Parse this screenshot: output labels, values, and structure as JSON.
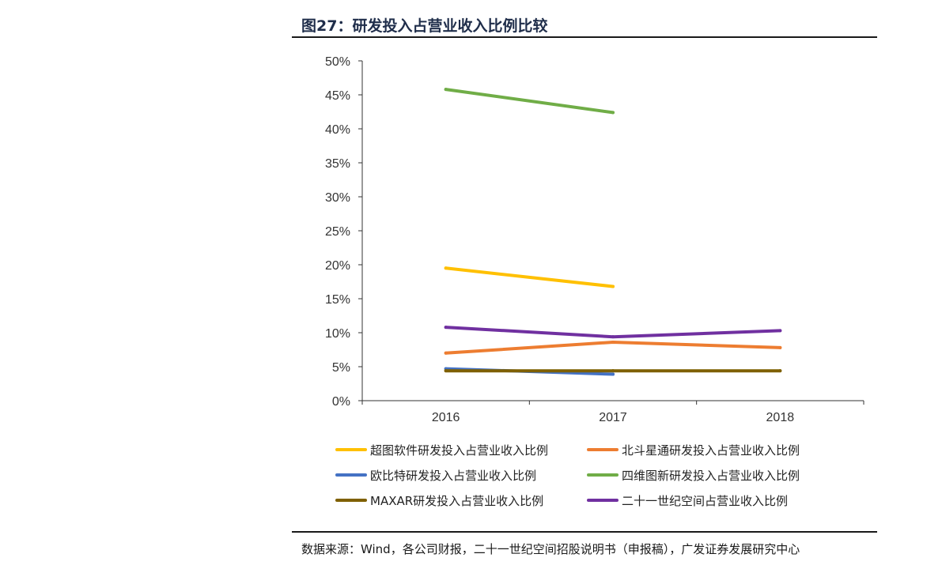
{
  "figure": {
    "title": "图27：研发投入占营业收入比例比较",
    "source": "数据来源：Wind，各公司财报，二十一世纪空间招股说明书（申报稿），广发证券发展研究中心"
  },
  "chart_data": {
    "type": "line",
    "title": "图27：研发投入占营业收入比例比较",
    "xlabel": "",
    "ylabel": "",
    "categories": [
      "2016",
      "2017",
      "2018"
    ],
    "y_ticks": [
      "0%",
      "5%",
      "10%",
      "15%",
      "20%",
      "25%",
      "30%",
      "35%",
      "40%",
      "45%",
      "50%"
    ],
    "ylim": [
      0,
      50
    ],
    "grid": false,
    "legend_position": "bottom",
    "series": [
      {
        "name": "超图软件研发投入占营业收入比例",
        "color": "#FFC000",
        "values": [
          19.5,
          16.8,
          null
        ]
      },
      {
        "name": "北斗星通研发投入占营业收入比例",
        "color": "#ED7D31",
        "values": [
          7.0,
          8.6,
          7.8
        ]
      },
      {
        "name": "欧比特研发投入占营业收入比例",
        "color": "#4472C4",
        "values": [
          4.7,
          3.9,
          null
        ]
      },
      {
        "name": "四维图新研发投入占营业收入比例",
        "color": "#70AD47",
        "values": [
          45.8,
          42.4,
          null
        ]
      },
      {
        "name": "MAXAR研发投入占营业收入比例",
        "color": "#7F6000",
        "values": [
          4.4,
          4.4,
          4.4
        ]
      },
      {
        "name": "二十一世纪空间占营业收入比例",
        "color": "#7030A0",
        "values": [
          10.8,
          9.4,
          10.3
        ]
      }
    ]
  }
}
